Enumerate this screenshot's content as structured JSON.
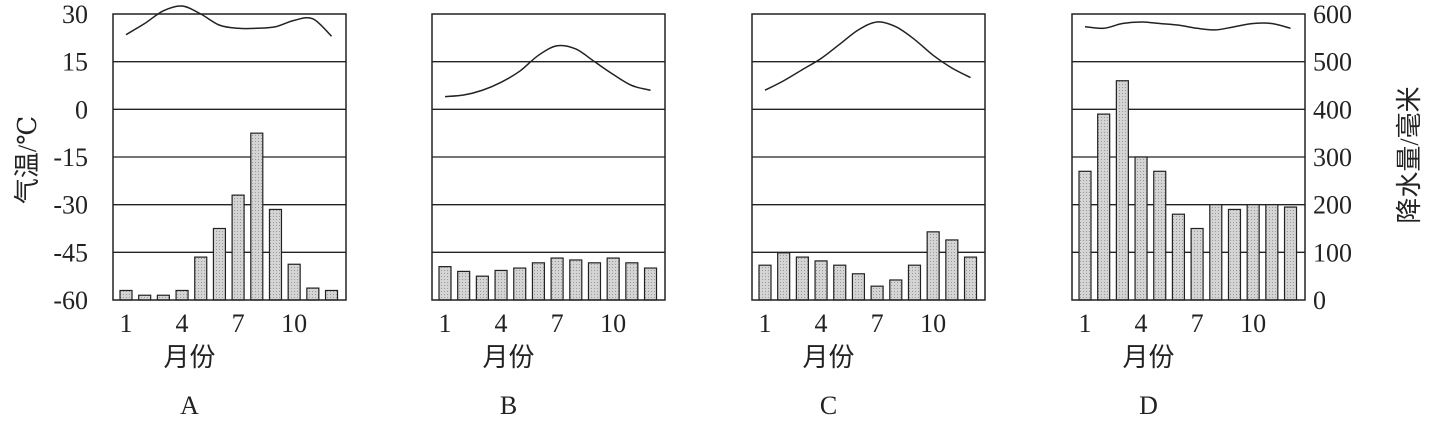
{
  "chart_data": {
    "type": "bar+line",
    "temperature_axis": {
      "label": "气温/℃",
      "ticks": [
        30,
        15,
        0,
        -15,
        -30,
        -45,
        -60
      ],
      "range": [
        -60,
        30
      ]
    },
    "precipitation_axis": {
      "label": "降水量/毫米",
      "ticks": [
        600,
        500,
        400,
        300,
        200,
        100,
        0
      ],
      "range": [
        0,
        600
      ]
    },
    "x_ticks": [
      "1",
      "4",
      "7",
      "10"
    ],
    "x_tick_months": [
      1,
      4,
      7,
      10
    ],
    "xlabel": "月份",
    "grid": true,
    "panels": [
      {
        "name": "A",
        "temperature": [
          23.5,
          27,
          31,
          32.5,
          30,
          26.5,
          25.5,
          25.5,
          26,
          28,
          28.5,
          23
        ],
        "precipitation": [
          20,
          10,
          10,
          20,
          90,
          150,
          220,
          350,
          190,
          75,
          25,
          20
        ]
      },
      {
        "name": "B",
        "temperature": [
          4,
          4.5,
          6,
          8.5,
          12,
          17,
          20,
          19,
          15,
          11,
          7.5,
          6
        ],
        "precipitation": [
          70,
          60,
          50,
          62,
          67,
          78,
          88,
          84,
          78,
          88,
          78,
          67
        ]
      },
      {
        "name": "C",
        "temperature": [
          6,
          9,
          12.5,
          16,
          20.5,
          25,
          27.5,
          26,
          22,
          17,
          13,
          10
        ],
        "precipitation": [
          73,
          99,
          90,
          82,
          73,
          55,
          29,
          42,
          73,
          143,
          126,
          90
        ]
      },
      {
        "name": "D",
        "temperature": [
          26,
          25.5,
          27,
          27.5,
          27,
          26.5,
          25.5,
          25,
          26,
          27,
          27,
          25.5
        ],
        "precipitation": [
          270,
          390,
          460,
          300,
          270,
          180,
          150,
          200,
          190,
          200,
          200,
          195
        ]
      }
    ]
  }
}
